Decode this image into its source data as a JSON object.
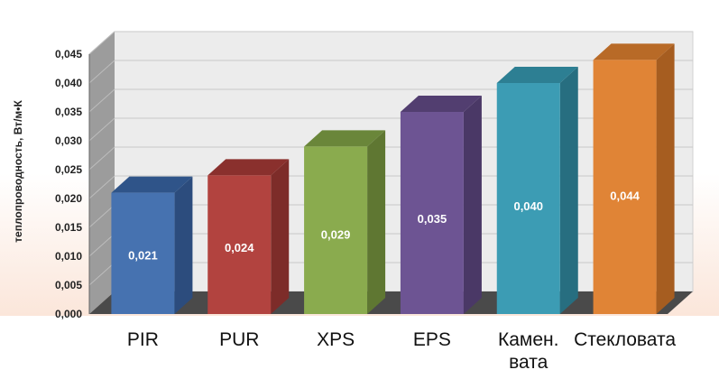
{
  "chart_data": {
    "type": "bar",
    "categories": [
      "PIR",
      "PUR",
      "XPS",
      "EPS",
      "Камен.\nвата",
      "Стекловата"
    ],
    "values": [
      0.021,
      0.024,
      0.029,
      0.035,
      0.04,
      0.044
    ],
    "data_labels": [
      "0,021",
      "0,024",
      "0,029",
      "0,035",
      "0,040",
      "0,044"
    ],
    "ylabel": "теплопроводность, Вт/м•К",
    "ylim": [
      0,
      0.045
    ],
    "y_ticks": [
      "0,000",
      "0,005",
      "0,010",
      "0,015",
      "0,020",
      "0,025",
      "0,030",
      "0,035",
      "0,040",
      "0,045"
    ],
    "grid": true,
    "colors": [
      "#4672b0",
      "#b2433f",
      "#8aab4e",
      "#6d5493",
      "#3c9cb4",
      "#e08436"
    ],
    "side_colors": [
      "#2c4c7d",
      "#7d2c29",
      "#5f7732",
      "#4a3866",
      "#276e80",
      "#a65d20"
    ],
    "top_colors": [
      "#2f5489",
      "#8a302d",
      "#6a863a",
      "#523e70",
      "#2d7f93",
      "#b86a27"
    ]
  }
}
